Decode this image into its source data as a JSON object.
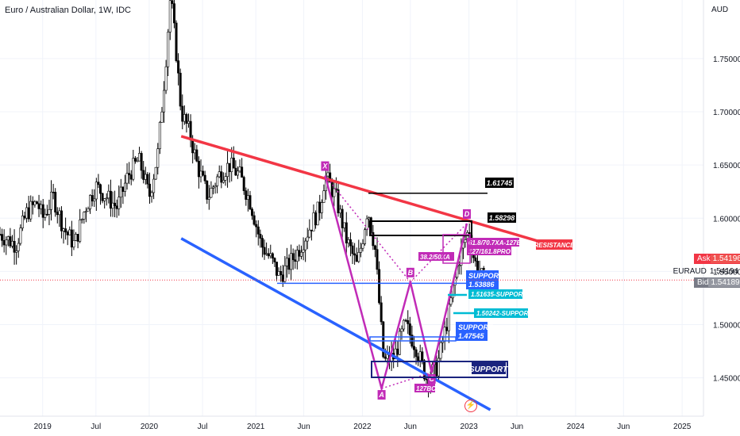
{
  "chart_data": {
    "type": "candlestick",
    "title": "Euro / Australian Dollar, 1W, IDC",
    "currency": "AUD",
    "y_ticks": [
      "1.75000",
      "1.70000",
      "1.65000",
      "1.60000",
      "1.55000",
      "1.50000",
      "1.45000"
    ],
    "x_ticks": [
      "2019",
      "Jul",
      "2020",
      "Jul",
      "2021",
      "Jun",
      "2022",
      "Jun",
      "2023",
      "Jun",
      "2024",
      "Jun",
      "2025"
    ],
    "ylim": [
      1.414,
      1.805
    ],
    "symbol": "EURAUD",
    "last_price": "1.54194",
    "ask": {
      "label": "Ask",
      "value": "1.54196"
    },
    "bid": {
      "label": "Bid",
      "value": "1.54189"
    },
    "colors": {
      "up": "#26a69a",
      "down": "#ef5350",
      "candle": "#000000",
      "resistance": "#f23645",
      "trend_support": "#2962ff",
      "pattern": "#c12bb7",
      "support_box": "#1a237e",
      "cyan": "#00bcd4"
    },
    "price_path": [
      [
        2018.6,
        1.585
      ],
      [
        2018.75,
        1.575
      ],
      [
        2018.85,
        1.605
      ],
      [
        2018.95,
        1.615
      ],
      [
        2019.0,
        1.6
      ],
      [
        2019.1,
        1.62
      ],
      [
        2019.2,
        1.59
      ],
      [
        2019.3,
        1.575
      ],
      [
        2019.4,
        1.61
      ],
      [
        2019.5,
        1.63
      ],
      [
        2019.6,
        1.62
      ],
      [
        2019.7,
        1.61
      ],
      [
        2019.8,
        1.64
      ],
      [
        2019.9,
        1.655
      ],
      [
        2019.95,
        1.64
      ],
      [
        2020.0,
        1.62
      ],
      [
        2020.08,
        1.66
      ],
      [
        2020.15,
        1.74
      ],
      [
        2020.2,
        1.81
      ],
      [
        2020.25,
        1.76
      ],
      [
        2020.3,
        1.7
      ],
      [
        2020.38,
        1.68
      ],
      [
        2020.45,
        1.65
      ],
      [
        2020.55,
        1.62
      ],
      [
        2020.65,
        1.64
      ],
      [
        2020.75,
        1.65
      ],
      [
        2020.85,
        1.64
      ],
      [
        2020.95,
        1.615
      ],
      [
        2021.05,
        1.575
      ],
      [
        2021.15,
        1.56
      ],
      [
        2021.22,
        1.545
      ],
      [
        2021.3,
        1.555
      ],
      [
        2021.4,
        1.57
      ],
      [
        2021.5,
        1.59
      ],
      [
        2021.6,
        1.61
      ],
      [
        2021.65,
        1.64
      ],
      [
        2021.75,
        1.62
      ],
      [
        2021.85,
        1.58
      ],
      [
        2021.95,
        1.555
      ],
      [
        2022.0,
        1.58
      ],
      [
        2022.05,
        1.61
      ],
      [
        2022.12,
        1.57
      ],
      [
        2022.2,
        1.465
      ],
      [
        2022.3,
        1.47
      ],
      [
        2022.4,
        1.5
      ],
      [
        2022.5,
        1.48
      ],
      [
        2022.6,
        1.45
      ],
      [
        2022.7,
        1.46
      ],
      [
        2022.8,
        1.505
      ],
      [
        2022.9,
        1.56
      ],
      [
        2023.0,
        1.59
      ],
      [
        2023.05,
        1.56
      ],
      [
        2023.12,
        1.545
      ],
      [
        2023.15,
        1.542
      ]
    ],
    "annotations": {
      "resistance": {
        "label": "RESISTANCE",
        "from": [
          2020.3,
          1.677
        ],
        "to": [
          2023.8,
          1.574
        ]
      },
      "trend_support": {
        "from": [
          2020.3,
          1.581
        ],
        "to": [
          2023.2,
          1.42
        ]
      },
      "horizontal_support": {
        "price": 1.53886,
        "from": 2021.2,
        "to": 2023.15
      },
      "harmonic": {
        "points": [
          {
            "name": "X",
            "x": 2021.65,
            "y": 1.64
          },
          {
            "name": "A",
            "x": 2022.18,
            "y": 1.44
          },
          {
            "name": "B",
            "x": 2022.45,
            "y": 1.54
          },
          {
            "name": "C",
            "x": 2022.65,
            "y": 1.455
          },
          {
            "name": "D",
            "x": 2022.98,
            "y": 1.595
          }
        ],
        "ratio_ab": "38.2/50XA",
        "ratio_ac": "127BC",
        "ratio_d_line1": "61.8/70.7XA-127BC",
        "ratio_d_line2": "127/161.8PRO"
      },
      "levels": [
        {
          "label": "1.61745",
          "price": 1.61745
        },
        {
          "label": "1.58298",
          "price": 1.58298
        }
      ],
      "supports": [
        {
          "label": "SUPPORT",
          "value": "1.53886"
        },
        {
          "label": "1.51635-SUPPORT"
        },
        {
          "label": "1.50242-SUPPORT"
        },
        {
          "label": "SUPPORT",
          "value": "1.47545"
        },
        {
          "label": "SUPPORT"
        }
      ]
    }
  }
}
